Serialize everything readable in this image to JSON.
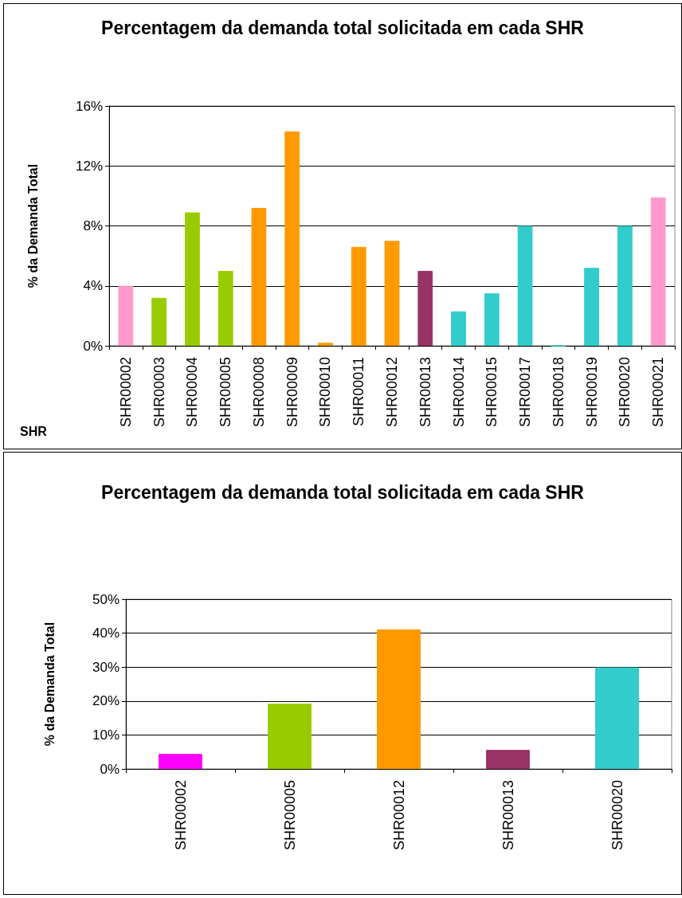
{
  "chart_data": [
    {
      "type": "bar",
      "title": "Percentagem da demanda total solicitada em cada SHR",
      "xlabel": "SHR",
      "ylabel": "% da Demanda Total",
      "categories": [
        "SHR00002",
        "SHR00003",
        "SHR00004",
        "SHR00005",
        "SHR00008",
        "SHR00009",
        "SHR00010",
        "SHR00011",
        "SHR00012",
        "SHR00013",
        "SHR00014",
        "SHR00015",
        "SHR00017",
        "SHR00018",
        "SHR00019",
        "SHR00020",
        "SHR00021"
      ],
      "values": [
        4.0,
        3.2,
        8.9,
        5.0,
        9.2,
        14.3,
        0.2,
        6.6,
        7.0,
        5.0,
        2.3,
        3.5,
        8.0,
        0,
        5.2,
        8.0,
        9.9
      ],
      "colors": [
        "#ff99cc",
        "#99cc00",
        "#99cc00",
        "#99cc00",
        "#ff9900",
        "#ff9900",
        "#ff9900",
        "#ff9900",
        "#ff9900",
        "#993366",
        "#33cccc",
        "#33cccc",
        "#33cccc",
        "#33cccc",
        "#33cccc",
        "#33cccc",
        "#ff99cc"
      ],
      "ylim": [
        0,
        16
      ],
      "yticks": [
        {
          "value": 0,
          "label": "0%"
        },
        {
          "value": 4,
          "label": "4%"
        },
        {
          "value": 8,
          "label": "8%"
        },
        {
          "value": 12,
          "label": "12%"
        },
        {
          "value": 16,
          "label": "16%"
        }
      ],
      "grid": "y"
    },
    {
      "type": "bar",
      "title": "Percentagem da demanda total solicitada em cada SHR",
      "ylabel": "% da Demanda Total",
      "categories": [
        "SHR00002",
        "SHR00005",
        "SHR00012",
        "SHR00013",
        "SHR00020"
      ],
      "values": [
        4.4,
        19.2,
        41.1,
        5.6,
        29.9
      ],
      "colors": [
        "#ff00ff",
        "#99cc00",
        "#ff9900",
        "#993366",
        "#33cccc"
      ],
      "ylim": [
        0,
        50
      ],
      "yticks": [
        {
          "value": 0,
          "label": "0%"
        },
        {
          "value": 10,
          "label": "10%"
        },
        {
          "value": 20,
          "label": "20%"
        },
        {
          "value": 30,
          "label": "30%"
        },
        {
          "value": 40,
          "label": "40%"
        },
        {
          "value": 50,
          "label": "50%"
        }
      ],
      "grid": "y"
    }
  ]
}
